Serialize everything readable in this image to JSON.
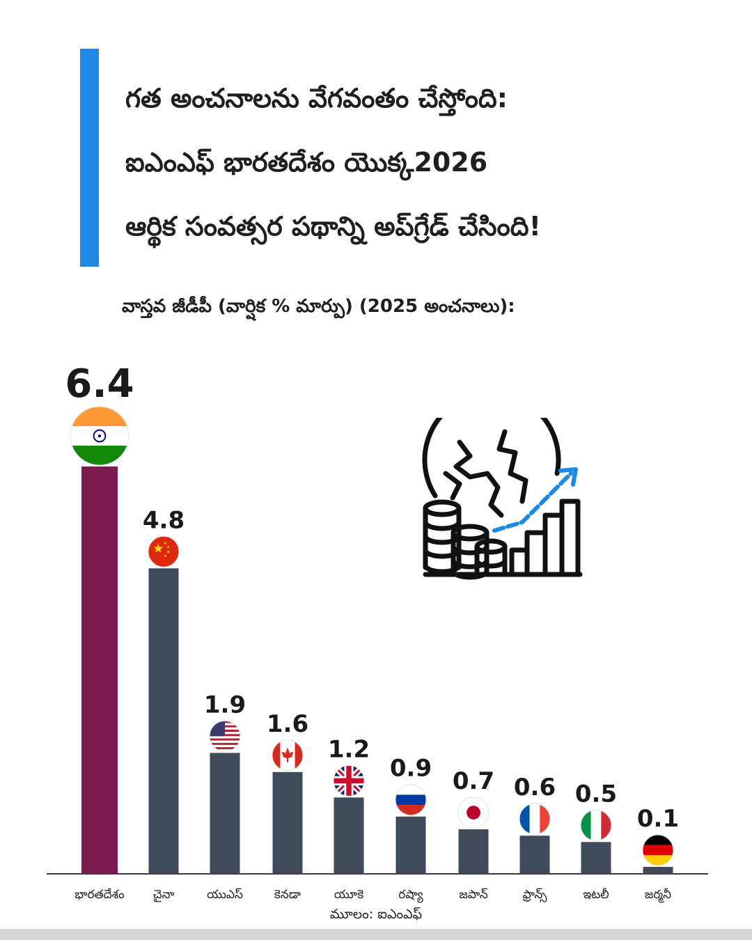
{
  "colors": {
    "accent": "#1e88e5",
    "highlight_bar": "#7a1a4e",
    "bar": "#3f4a5a",
    "axis": "#3a3a3a"
  },
  "title_lines": [
    "గత అంచనాలను వేగవంతం చేస్తోంది:",
    "ఐఎంఎఫ్ భారతదేశం యొక్క2026",
    "ఆర్థిక సంవత్సర పథాన్ని అప్‌గ్రేడ్ చేసింది!"
  ],
  "icons": {
    "illustration": "globe-coins-growth-icon"
  },
  "source": "మూలం: ఐఎంఎఫ్",
  "chart_data": {
    "type": "bar",
    "title": "వాస్తవ జీడీపీ (వార్షిక % మార్పు) (2025 అంచనాలు):",
    "categories": [
      "భారతదేశం",
      "చైనా",
      "యుఎస్",
      "కెనడా",
      "యూకె",
      "రష్యా",
      "జపాన్",
      "ఫ్రాన్స్",
      "ఇటలీ",
      "జర్మనీ"
    ],
    "values": [
      6.4,
      4.8,
      1.9,
      1.6,
      1.2,
      0.9,
      0.7,
      0.6,
      0.5,
      0.1
    ],
    "value_labels": [
      "6.4",
      "4.8",
      "1.9",
      "1.6",
      "1.2",
      "0.9",
      "0.7",
      "0.6",
      "0.5",
      "0.1"
    ],
    "flags": [
      "india",
      "china",
      "usa",
      "canada",
      "uk",
      "russia",
      "japan",
      "france",
      "italy",
      "germany"
    ],
    "highlight_index": 0,
    "ylim": [
      0,
      6.4
    ],
    "grid": false,
    "legend": "none"
  }
}
